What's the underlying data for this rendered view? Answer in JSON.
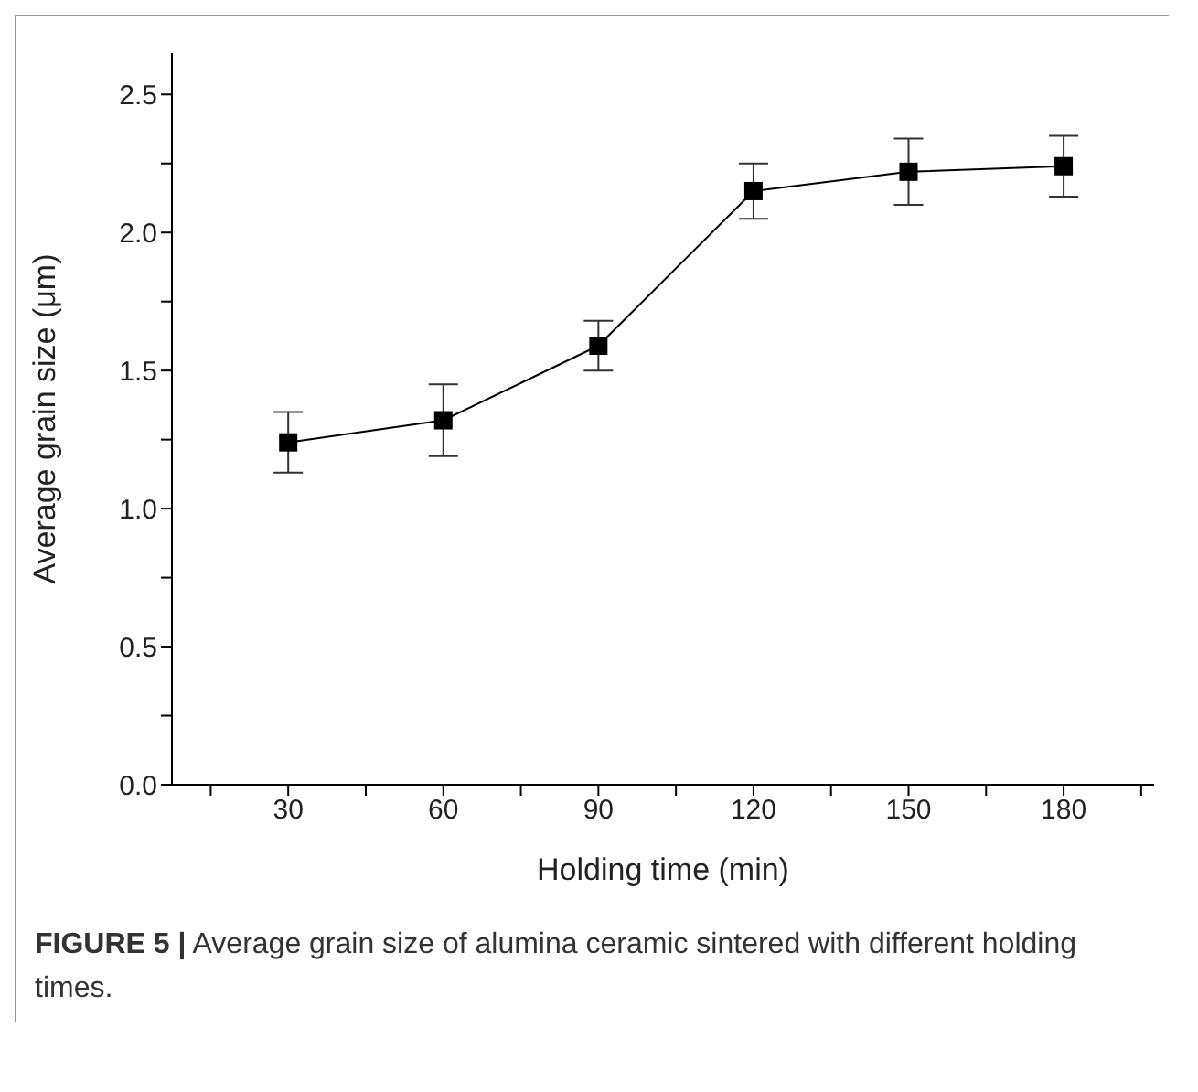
{
  "chart_data": {
    "type": "line",
    "xlabel": "Holding time (min)",
    "ylabel": "Average grain size (μm)",
    "x": [
      30,
      60,
      90,
      120,
      150,
      180
    ],
    "series": [
      {
        "color": "#000000",
        "values": [
          1.24,
          1.32,
          1.59,
          2.15,
          2.22,
          2.24
        ],
        "errors": [
          [
            1.13,
            1.35
          ],
          [
            1.19,
            1.45
          ],
          [
            1.5,
            1.68
          ],
          [
            2.05,
            2.25
          ],
          [
            2.1,
            2.34
          ],
          [
            2.13,
            2.35
          ]
        ]
      }
    ],
    "xlim": [
      7.5,
      197.5
    ],
    "xticks": [
      {
        "value": 15,
        "label": null
      },
      30,
      {
        "value": 45,
        "label": null
      },
      60,
      {
        "value": 75,
        "label": null
      },
      90,
      {
        "value": 105,
        "label": null
      },
      120,
      {
        "value": 135,
        "label": null
      },
      150,
      {
        "value": 165,
        "label": null
      },
      180,
      {
        "value": 195,
        "label": null
      }
    ],
    "ylim": [
      0,
      2.65
    ],
    "yticks": [
      {
        "value": 0,
        "label": "0.0"
      },
      {
        "value": 0.25,
        "label": null
      },
      {
        "value": 0.5,
        "label": "0.5"
      },
      {
        "value": 0.75,
        "label": null
      },
      {
        "value": 1,
        "label": "1.0"
      },
      {
        "value": 1.25,
        "label": null
      },
      {
        "value": 1.5,
        "label": "1.5"
      },
      {
        "value": 1.75,
        "label": null
      },
      {
        "value": 2,
        "label": "2.0"
      },
      {
        "value": 2.25,
        "label": null
      },
      {
        "value": 2.5,
        "label": "2.5"
      }
    ],
    "grid": false,
    "legend": false,
    "marker": "square",
    "line_style": "solid",
    "annotations": [
      "FIGURE 5 | Average grain size of alumina ceramic sintered with different holding times."
    ]
  }
}
